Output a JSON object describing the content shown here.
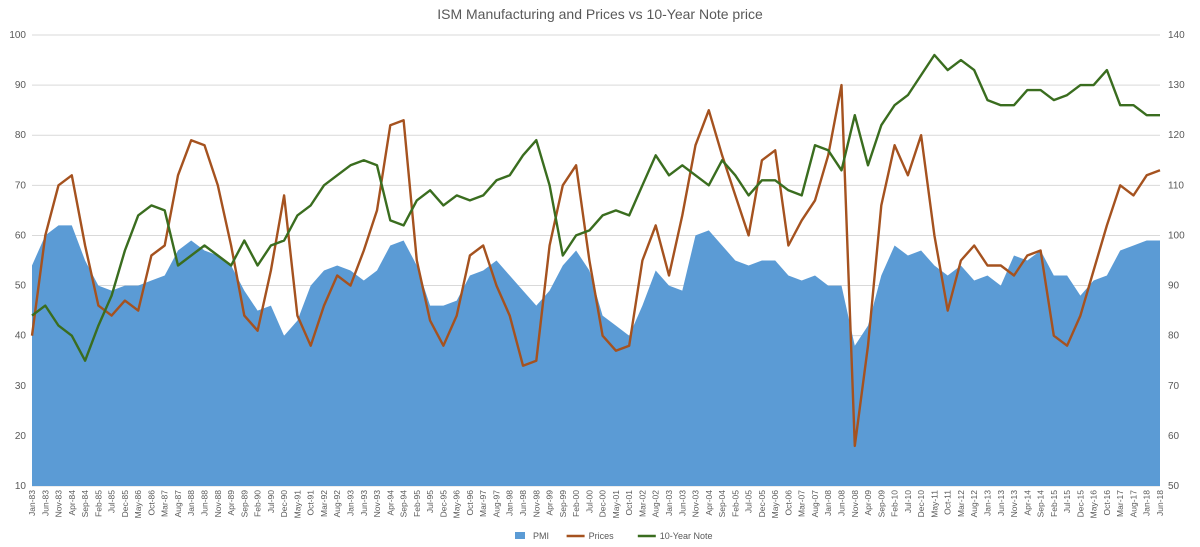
{
  "chart_data": {
    "type": "area",
    "title": "ISM Manufacturing and Prices vs 10-Year Note price",
    "y_left": {
      "min": 10,
      "max": 100,
      "step": 10
    },
    "y_right": {
      "min": 50,
      "max": 140,
      "step": 10
    },
    "grid": true,
    "legend_position": "bottom",
    "x_labels": [
      "Jan-83",
      "Jun-83",
      "Nov-83",
      "Apr-84",
      "Sep-84",
      "Feb-85",
      "Jul-85",
      "Dec-85",
      "May-86",
      "Oct-86",
      "Mar-87",
      "Aug-87",
      "Jan-88",
      "Jun-88",
      "Nov-88",
      "Apr-89",
      "Sep-89",
      "Feb-90",
      "Jul-90",
      "Dec-90",
      "May-91",
      "Oct-91",
      "Mar-92",
      "Aug-92",
      "Jan-93",
      "Jun-93",
      "Nov-93",
      "Apr-94",
      "Sep-94",
      "Feb-95",
      "Jul-95",
      "Dec-95",
      "May-96",
      "Oct-96",
      "Mar-97",
      "Aug-97",
      "Jan-98",
      "Jun-98",
      "Nov-98",
      "Apr-99",
      "Sep-99",
      "Feb-00",
      "Jul-00",
      "Dec-00",
      "May-01",
      "Oct-01",
      "Mar-02",
      "Aug-02",
      "Jan-03",
      "Jun-03",
      "Nov-03",
      "Apr-04",
      "Sep-04",
      "Feb-05",
      "Jul-05",
      "Dec-05",
      "May-06",
      "Oct-06",
      "Mar-07",
      "Aug-07",
      "Jan-08",
      "Jun-08",
      "Nov-08",
      "Apr-09",
      "Sep-09",
      "Feb-10",
      "Jul-10",
      "Dec-10",
      "May-11",
      "Oct-11",
      "Mar-12",
      "Aug-12",
      "Jan-13",
      "Jun-13",
      "Nov-13",
      "Apr-14",
      "Sep-14",
      "Feb-15",
      "Jul-15",
      "Dec-15",
      "May-16",
      "Oct-16",
      "Mar-17",
      "Aug-17",
      "Jan-18",
      "Jun-18"
    ],
    "x_start": "Jan-83",
    "label_interval_months": 5,
    "series_point_interval_months": 5,
    "series": [
      {
        "name": "PMI",
        "kind": "area",
        "axis": "left",
        "color": "#5b9bd5",
        "values": [
          54,
          60,
          62,
          62,
          55,
          50,
          49,
          50,
          50,
          51,
          52,
          57,
          59,
          57,
          56,
          54,
          49,
          45,
          46,
          40,
          43,
          50,
          53,
          54,
          53,
          51,
          53,
          58,
          59,
          54,
          46,
          46,
          47,
          52,
          53,
          55,
          52,
          49,
          46,
          49,
          54,
          57,
          53,
          44,
          42,
          40,
          46,
          53,
          50,
          49,
          60,
          61,
          58,
          55,
          54,
          55,
          55,
          52,
          51,
          52,
          50,
          50,
          38,
          42,
          52,
          58,
          56,
          57,
          54,
          52,
          54,
          51,
          52,
          50,
          56,
          55,
          57,
          52,
          52,
          48,
          51,
          52,
          57,
          58,
          59,
          59
        ]
      },
      {
        "name": "Prices",
        "kind": "line",
        "axis": "left",
        "color": "#a5521f",
        "values": [
          40,
          60,
          70,
          72,
          58,
          46,
          44,
          47,
          45,
          56,
          58,
          72,
          79,
          78,
          70,
          58,
          44,
          41,
          53,
          68,
          44,
          38,
          46,
          52,
          50,
          57,
          65,
          82,
          83,
          55,
          43,
          38,
          44,
          56,
          58,
          50,
          44,
          34,
          35,
          58,
          70,
          74,
          55,
          40,
          37,
          38,
          55,
          62,
          52,
          64,
          78,
          85,
          76,
          68,
          60,
          75,
          77,
          58,
          63,
          67,
          76,
          90,
          18,
          38,
          66,
          78,
          72,
          80,
          60,
          45,
          55,
          58,
          54,
          54,
          52,
          56,
          57,
          40,
          38,
          44,
          53,
          62,
          70,
          68,
          72,
          73
        ]
      },
      {
        "name": "10-Year Note",
        "kind": "line",
        "axis": "right",
        "color": "#3a6d1f",
        "values": [
          84,
          86,
          82,
          80,
          75,
          82,
          88,
          97,
          104,
          106,
          105,
          94,
          96,
          98,
          96,
          94,
          99,
          94,
          98,
          99,
          104,
          106,
          110,
          112,
          114,
          115,
          114,
          103,
          102,
          107,
          109,
          106,
          108,
          107,
          108,
          111,
          112,
          116,
          119,
          110,
          96,
          100,
          101,
          104,
          105,
          104,
          110,
          116,
          112,
          114,
          112,
          110,
          115,
          112,
          108,
          111,
          111,
          109,
          108,
          118,
          117,
          113,
          124,
          114,
          122,
          126,
          128,
          132,
          136,
          133,
          135,
          133,
          127,
          126,
          126,
          129,
          129,
          127,
          128,
          130,
          130,
          133,
          126,
          126,
          124,
          124
        ]
      }
    ]
  }
}
